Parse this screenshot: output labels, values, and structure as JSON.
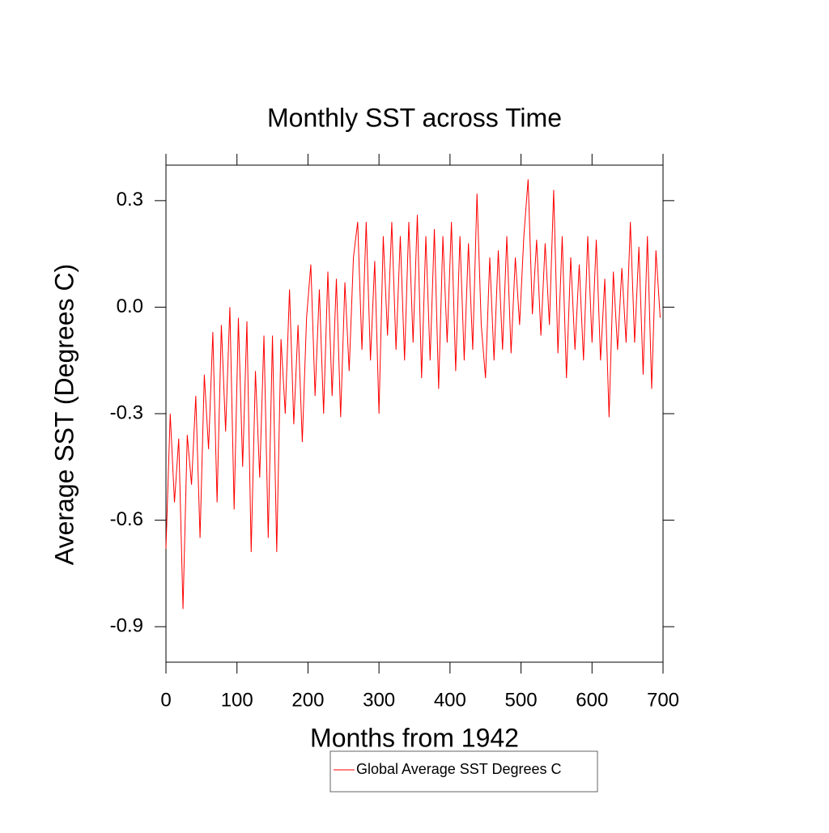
{
  "chart_data": {
    "type": "line",
    "title": "Monthly SST across Time",
    "xlabel": "Months from 1942",
    "ylabel": "Average SST (Degrees C)",
    "x": [
      0,
      6,
      12,
      18,
      24,
      30,
      36,
      42,
      48,
      54,
      60,
      66,
      72,
      78,
      84,
      90,
      96,
      102,
      108,
      114,
      120,
      126,
      132,
      138,
      144,
      150,
      156,
      162,
      168,
      174,
      180,
      186,
      192,
      198,
      204,
      210,
      216,
      222,
      228,
      234,
      240,
      246,
      252,
      258,
      264,
      270,
      276,
      282,
      288,
      294,
      300,
      306,
      312,
      318,
      324,
      330,
      336,
      342,
      348,
      354,
      360,
      366,
      372,
      378,
      384,
      390,
      396,
      402,
      408,
      414,
      420,
      426,
      432,
      438,
      444,
      450,
      456,
      462,
      468,
      474,
      480,
      486,
      492,
      498,
      504,
      510,
      516,
      522,
      528,
      534,
      540,
      546,
      552,
      558,
      564,
      570,
      576,
      582,
      588,
      594,
      600,
      606,
      612,
      618,
      624,
      630,
      636,
      642,
      648,
      654,
      660,
      666,
      672,
      678,
      684,
      690,
      696
    ],
    "series": [
      {
        "name": "Global Average SST Degrees C",
        "color": "#ff0000",
        "values": [
          -0.68,
          -0.3,
          -0.55,
          -0.37,
          -0.85,
          -0.36,
          -0.5,
          -0.25,
          -0.65,
          -0.19,
          -0.4,
          -0.07,
          -0.55,
          -0.05,
          -0.35,
          0.0,
          -0.57,
          -0.03,
          -0.45,
          -0.04,
          -0.69,
          -0.18,
          -0.48,
          -0.08,
          -0.65,
          -0.08,
          -0.69,
          -0.09,
          -0.3,
          0.05,
          -0.33,
          -0.05,
          -0.38,
          -0.03,
          0.12,
          -0.25,
          0.05,
          -0.3,
          0.1,
          -0.25,
          0.08,
          -0.31,
          0.07,
          -0.18,
          0.14,
          0.24,
          -0.12,
          0.24,
          -0.15,
          0.13,
          -0.3,
          0.2,
          -0.08,
          0.24,
          -0.12,
          0.2,
          -0.15,
          0.24,
          -0.1,
          0.26,
          -0.2,
          0.2,
          -0.15,
          0.22,
          -0.23,
          0.2,
          -0.1,
          0.24,
          -0.18,
          0.2,
          -0.15,
          0.18,
          -0.12,
          0.32,
          -0.05,
          -0.2,
          0.14,
          -0.15,
          0.16,
          -0.12,
          0.2,
          -0.13,
          0.14,
          -0.05,
          0.2,
          0.36,
          -0.02,
          0.19,
          -0.08,
          0.18,
          -0.05,
          0.33,
          -0.13,
          0.2,
          -0.2,
          0.14,
          -0.12,
          0.12,
          -0.15,
          0.2,
          -0.1,
          0.19,
          -0.15,
          0.08,
          -0.31,
          0.1,
          -0.12,
          0.11,
          -0.1,
          0.24,
          -0.1,
          0.17,
          -0.19,
          0.2,
          -0.23,
          0.16,
          -0.03
        ]
      }
    ],
    "xlim": [
      0,
      700
    ],
    "xticks": [
      0,
      100,
      200,
      300,
      400,
      500,
      600,
      700
    ],
    "ylim": [
      -1.0,
      0.4
    ],
    "yticks": [
      -0.9,
      -0.6,
      -0.3,
      {
        "value": 0,
        "label": "0.0"
      },
      0.3
    ],
    "legend": "bottom"
  }
}
